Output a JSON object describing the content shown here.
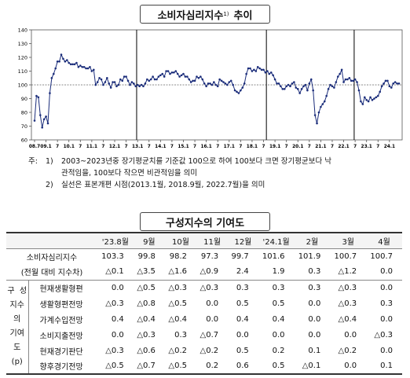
{
  "title": {
    "main": "소비자심리지수",
    "sup": "1)",
    "suffix": "추이"
  },
  "chart_data": {
    "type": "line",
    "ylim": [
      60,
      140
    ],
    "yticks": [
      60,
      70,
      80,
      90,
      100,
      110,
      120,
      130,
      140
    ],
    "xticks": [
      "08.7",
      "09.1",
      "7",
      "10.1",
      "7",
      "11.1",
      "7",
      "12.1",
      "7",
      "13.1",
      "7",
      "14.1",
      "7",
      "15.1",
      "7",
      "16.1",
      "7",
      "17.1",
      "7",
      "18.1",
      "7",
      "19.1",
      "7",
      "20.1",
      "7",
      "21.1",
      "7",
      "22.1",
      "7",
      "23.1",
      "7",
      "24.1"
    ],
    "x_start": "2008-07",
    "reference_line": 100,
    "break_points": [
      "2013-01",
      "2018-09",
      "2022-07"
    ],
    "values": [
      74,
      92,
      91,
      78,
      69,
      75,
      77,
      72,
      94,
      105,
      108,
      112,
      117,
      117,
      122,
      119,
      117,
      118,
      116,
      115,
      115,
      115,
      116,
      113,
      114,
      113,
      113,
      112,
      112,
      113,
      110,
      111,
      100,
      102,
      105,
      104,
      100,
      102,
      105,
      101,
      98,
      102,
      102,
      99,
      100,
      104,
      103,
      106,
      106,
      103,
      100,
      102,
      101,
      99,
      100,
      99,
      100,
      99,
      101,
      104,
      103,
      104,
      106,
      104,
      104,
      106,
      107,
      108,
      106,
      110,
      110,
      108,
      109,
      109,
      110,
      108,
      106,
      107,
      108,
      106,
      106,
      104,
      102,
      103,
      103,
      106,
      105,
      106,
      104,
      101,
      99,
      101,
      101,
      100,
      102,
      100,
      99,
      104,
      103,
      102,
      101,
      100,
      102,
      103,
      100,
      96,
      95,
      94,
      96,
      98,
      101,
      108,
      112,
      112,
      110,
      111,
      110,
      113,
      112,
      111,
      111,
      109,
      110,
      108,
      109,
      107,
      104,
      101,
      101,
      99,
      97,
      97,
      99,
      100,
      99,
      101,
      102,
      98,
      97,
      94,
      97,
      99,
      100,
      96,
      101,
      104,
      96,
      78,
      72,
      80,
      84,
      86,
      88,
      92,
      97,
      100,
      99,
      98,
      102,
      106,
      108,
      111,
      102,
      104,
      104,
      105,
      103,
      103,
      104,
      102,
      96,
      88,
      86,
      91,
      89,
      88,
      91,
      89,
      90,
      91,
      92,
      95,
      99,
      101,
      103,
      103,
      99,
      98,
      101,
      102,
      101,
      101
    ]
  },
  "notes": {
    "prefix": "주:",
    "n1_num": "1)",
    "n1_line1": "2003~2023년중 장기평균치를 기준값 100으로 하여 100보다 크면 장기평균보다 낙",
    "n1_line2": "관적임을, 100보다 작으면 비관적임을 의미",
    "n2_num": "2)",
    "n2_text": "실선은 표본개편 시점(2013.1월, 2018.9월, 2022.7월)을 의미"
  },
  "table_title": "구성지수의 기여도",
  "table": {
    "columns": [
      "'23.8월",
      "9월",
      "10월",
      "11월",
      "12월",
      "'24.1월",
      "2월",
      "3월",
      "4월"
    ],
    "csi_label": "소비자심리지수",
    "csi_values": [
      "103.3",
      "99.8",
      "98.2",
      "97.3",
      "99.7",
      "101.6",
      "101.9",
      "100.7",
      "100.7"
    ],
    "diff_label": "(전월 대비 지수차)",
    "diff_values": [
      "△0.1",
      "△3.5",
      "△1.6",
      "△0.9",
      "2.4",
      "1.9",
      "0.3",
      "△1.2",
      "0.0"
    ],
    "group_label": "구 성 지수의 기여도 (p)",
    "rows": [
      {
        "label": "현재생활형편",
        "values": [
          "0.0",
          "△0.5",
          "△0.3",
          "△0.3",
          "0.3",
          "0.3",
          "0.3",
          "△0.3",
          "0.0"
        ]
      },
      {
        "label": "생활형편전망",
        "values": [
          "△0.3",
          "△0.8",
          "△0.5",
          "0.0",
          "0.5",
          "0.5",
          "0.0",
          "△0.3",
          "0.3"
        ]
      },
      {
        "label": "가계수입전망",
        "values": [
          "0.4",
          "△0.4",
          "△0.4",
          "0.0",
          "0.4",
          "0.4",
          "0.0",
          "△0.4",
          "0.0"
        ]
      },
      {
        "label": "소비지출전망",
        "values": [
          "0.0",
          "△0.3",
          "0.3",
          "△0.7",
          "0.0",
          "0.0",
          "0.0",
          "0.0",
          "△0.3"
        ]
      },
      {
        "label": "현재경기판단",
        "values": [
          "△0.3",
          "△0.6",
          "△0.2",
          "△0.2",
          "0.5",
          "0.2",
          "0.1",
          "△0.2",
          "0.0"
        ]
      },
      {
        "label": "향후경기전망",
        "values": [
          "△0.5",
          "△0.7",
          "△0.5",
          "0.2",
          "0.6",
          "0.5",
          "△0.1",
          "0.0",
          "0.1"
        ]
      }
    ]
  }
}
